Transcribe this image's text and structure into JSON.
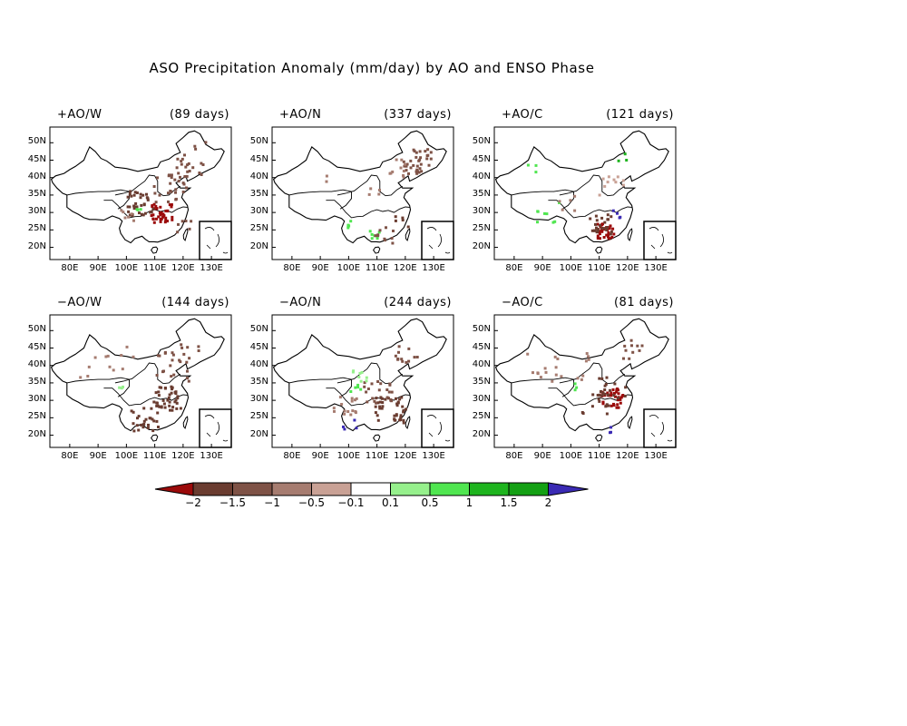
{
  "title": "ASO Precipitation Anomaly (mm/day) by AO and ENSO Phase",
  "axes": {
    "lon_ticks": [
      "80E",
      "90E",
      "100E",
      "110E",
      "120E",
      "130E"
    ],
    "lat_ticks": [
      "50N",
      "45N",
      "40N",
      "35N",
      "30N",
      "25N",
      "20N"
    ]
  },
  "panels": [
    {
      "label": "+AO/W",
      "days": "(89 days)",
      "col": 0,
      "row": 0
    },
    {
      "label": "+AO/N",
      "days": "(337 days)",
      "col": 1,
      "row": 0
    },
    {
      "label": "+AO/C",
      "days": "(121 days)",
      "col": 2,
      "row": 0
    },
    {
      "label": "−AO/W",
      "days": "(144 days)",
      "col": 0,
      "row": 1
    },
    {
      "label": "−AO/N",
      "days": "(244 days)",
      "col": 1,
      "row": 1
    },
    {
      "label": "−AO/C",
      "days": "(81 days)",
      "col": 2,
      "row": 1
    }
  ],
  "colorbar": {
    "labels": [
      "−2",
      "−1.5",
      "−1",
      "−0.5",
      "−0.1",
      "0.1",
      "0.5",
      "1",
      "1.5",
      "2"
    ],
    "colors": [
      "#9b0a0a",
      "#6a3c30",
      "#7e5246",
      "#a67c70",
      "#c9a195",
      "#ffffff",
      "#96f08c",
      "#50e650",
      "#1eb41e",
      "#14a014",
      "#3a2ab4"
    ]
  }
}
